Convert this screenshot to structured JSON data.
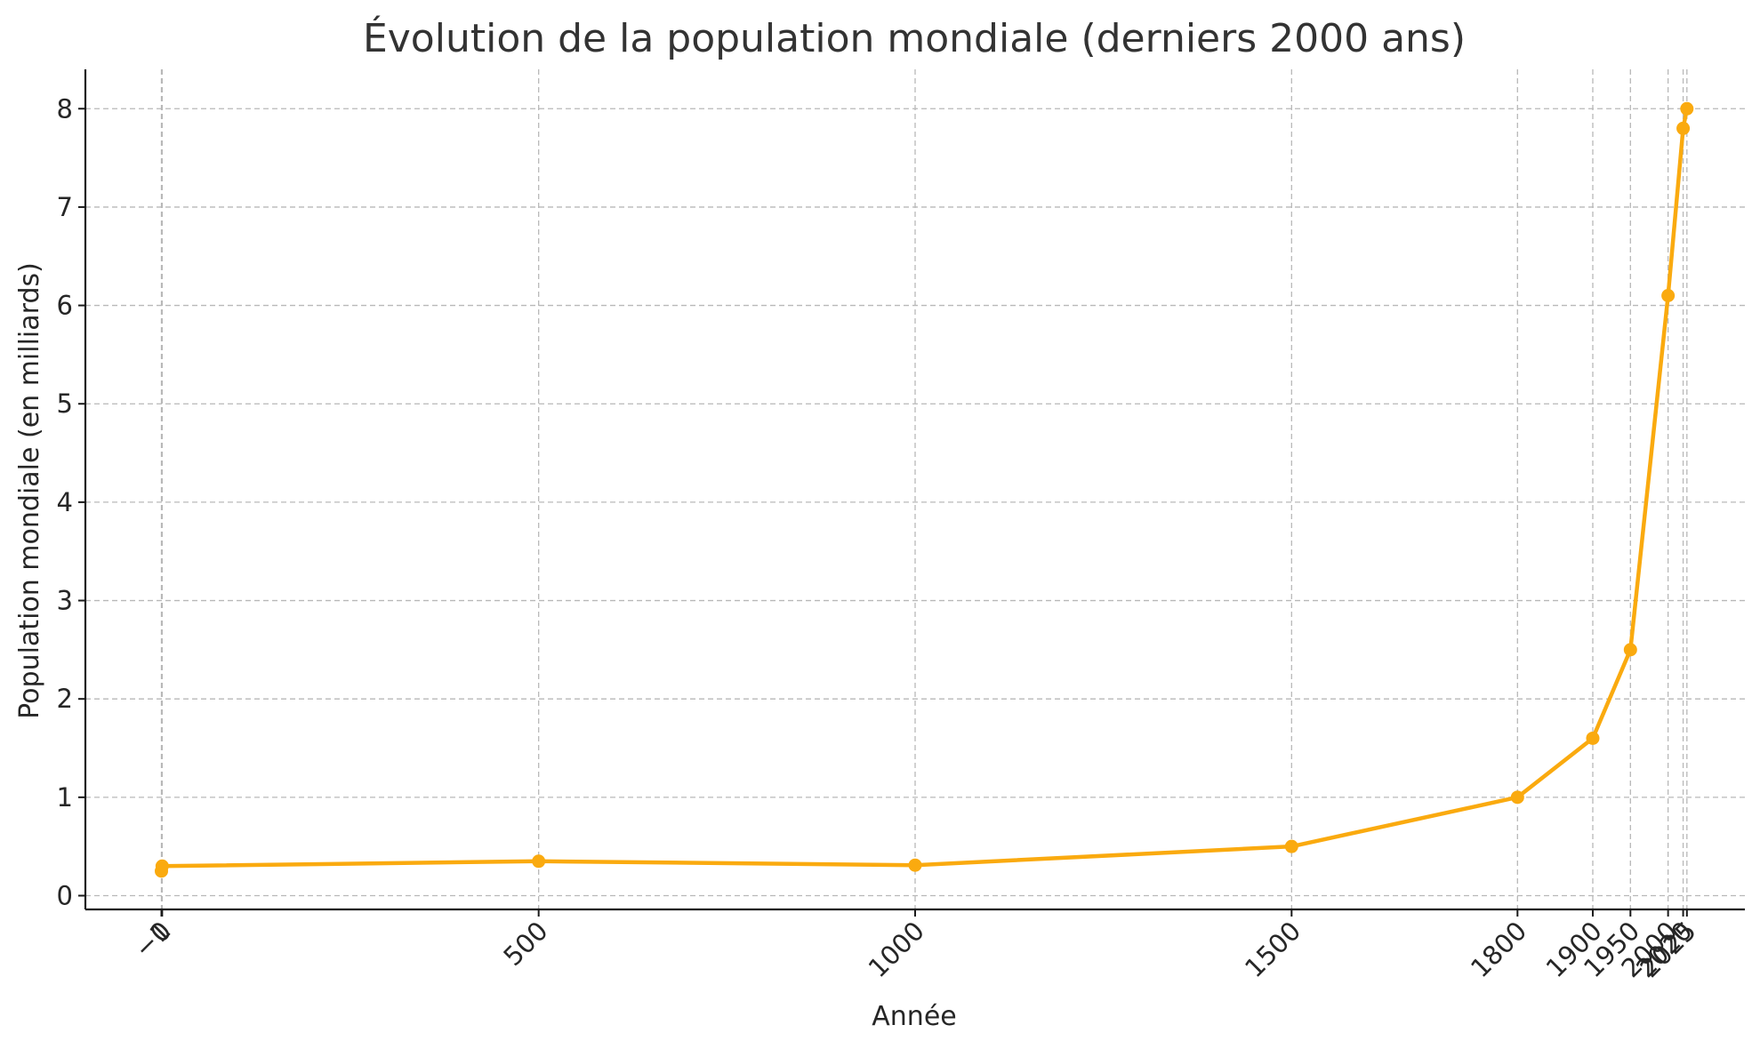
{
  "chart_data": {
    "type": "line",
    "title": "Évolution de la population mondiale (derniers 2000 ans)",
    "xlabel": "Année",
    "ylabel": "Population mondiale (en milliards)",
    "x": [
      -1,
      0,
      500,
      1000,
      1500,
      1800,
      1900,
      1950,
      2000,
      2020,
      2025
    ],
    "series": [
      {
        "values": [
          0.25,
          0.3,
          0.35,
          0.31,
          0.5,
          1.0,
          1.6,
          2.5,
          6.1,
          7.8,
          8.0
        ]
      }
    ],
    "xticks": [
      -1,
      0,
      500,
      1000,
      1500,
      1800,
      1900,
      1950,
      2000,
      2020,
      2025
    ],
    "xtick_labels": [
      "−1",
      "0",
      "500",
      "1000",
      "1500",
      "1800",
      "1900",
      "1950",
      "2000",
      "2020",
      "2025"
    ],
    "yticks": [
      0,
      1,
      2,
      3,
      4,
      5,
      6,
      7,
      8
    ],
    "ytick_labels": [
      "0",
      "1",
      "2",
      "3",
      "4",
      "5",
      "6",
      "7",
      "8"
    ],
    "xlim": [
      -102,
      2102
    ],
    "ylim": [
      -0.14,
      8.4
    ],
    "grid": true,
    "line_color": "#FAAA0F",
    "marker": "circle"
  }
}
